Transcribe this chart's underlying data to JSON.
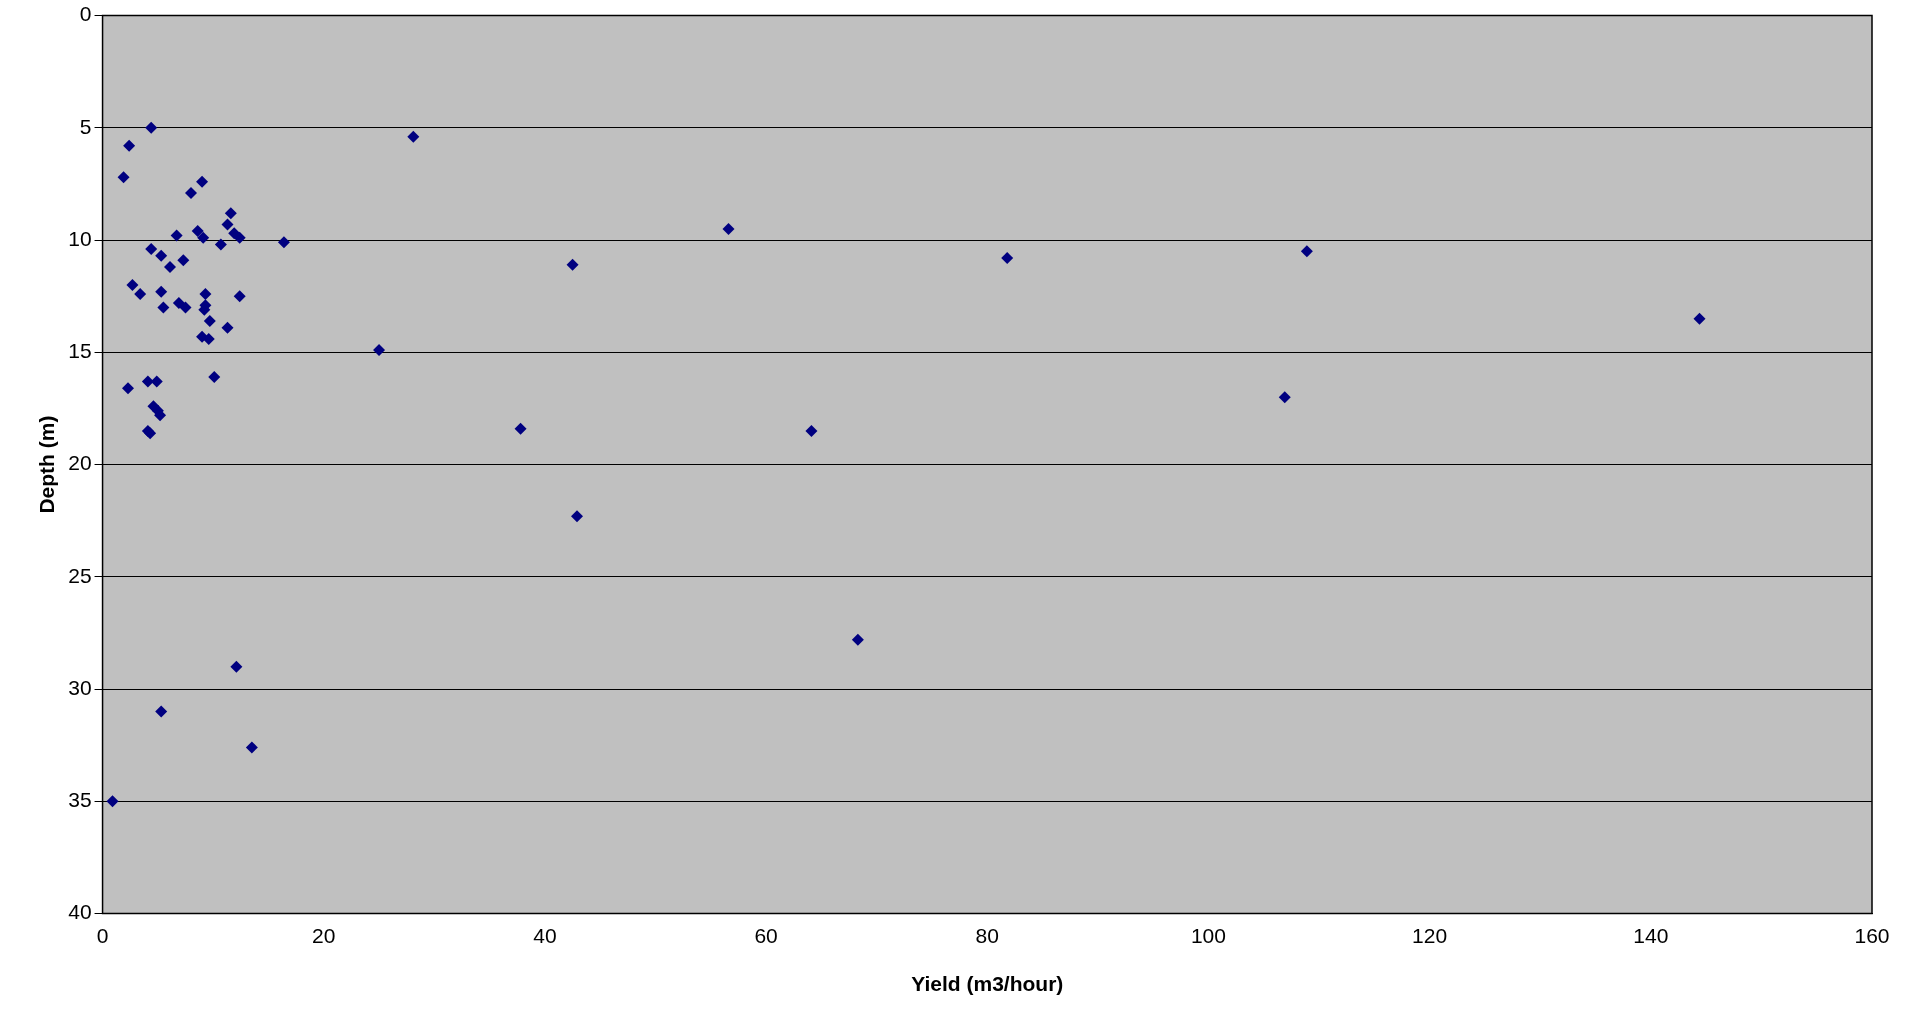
{
  "chart_data": {
    "type": "scatter",
    "xlabel": "Yield (m3/hour)",
    "ylabel": "Depth (m)",
    "x": [
      4.4,
      2.4,
      1.9,
      9.0,
      8.0,
      11.6,
      11.3,
      8.6,
      11.9,
      12.4,
      9.1,
      6.7,
      4.4,
      10.7,
      16.4,
      5.3,
      7.3,
      6.1,
      2.7,
      3.4,
      5.3,
      9.3,
      12.4,
      6.9,
      7.5,
      5.5,
      9.3,
      9.2,
      9.7,
      11.3,
      9.0,
      9.6,
      10.1,
      2.3,
      4.1,
      4.9,
      4.6,
      5.0,
      5.2,
      4.1,
      4.3,
      12.1,
      5.3,
      13.5,
      0.9,
      28.1,
      25.0,
      37.8,
      42.5,
      42.9,
      56.6,
      64.1,
      68.3,
      81.8,
      106.9,
      108.9,
      144.4
    ],
    "series": [
      {
        "color": "#000080",
        "values": [
          5.0,
          5.8,
          7.2,
          7.4,
          7.9,
          8.8,
          9.3,
          9.6,
          9.7,
          9.9,
          9.9,
          9.8,
          10.4,
          10.2,
          10.1,
          10.7,
          10.9,
          11.2,
          12.0,
          12.4,
          12.3,
          12.4,
          12.5,
          12.8,
          13.0,
          13.0,
          12.9,
          13.1,
          13.6,
          13.9,
          14.3,
          14.4,
          16.1,
          16.6,
          16.3,
          16.3,
          17.4,
          17.6,
          17.8,
          18.5,
          18.6,
          29.0,
          31.0,
          32.6,
          35.0,
          5.4,
          14.9,
          18.4,
          11.1,
          22.3,
          9.5,
          18.5,
          27.8,
          10.8,
          17.0,
          10.5,
          13.5
        ]
      }
    ],
    "xlim": [
      0,
      160
    ],
    "xticks": [
      0,
      20,
      40,
      60,
      80,
      100,
      120,
      140,
      160
    ],
    "ylim": [
      40,
      0
    ],
    "yticks": [
      0,
      5,
      10,
      15,
      20,
      25,
      30,
      35,
      40
    ],
    "grid": "y",
    "legend": false,
    "marker": "diamond"
  }
}
